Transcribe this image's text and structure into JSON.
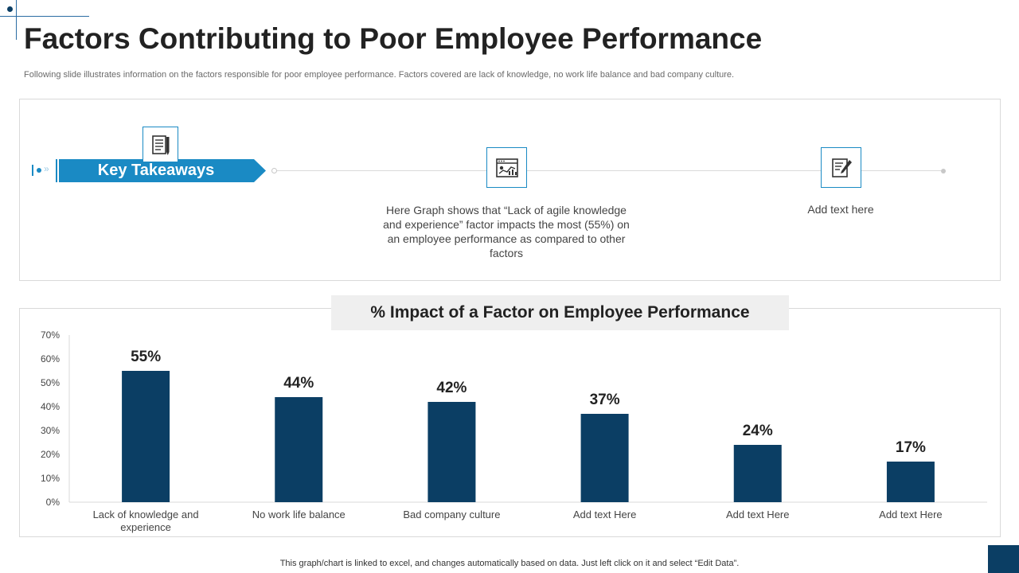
{
  "header": {
    "title": "Factors Contributing to Poor Employee Performance",
    "subtitle": "Following slide illustrates information on the factors responsible for poor employee performance. Factors covered are lack of knowledge, no work life balance and bad company culture."
  },
  "takeaways": {
    "label": "Key Takeaways",
    "point1": "Here Graph shows that “Lack of agile knowledge and experience” factor impacts the most (55%) on an employee performance as compared to other factors",
    "point2": "Add text here"
  },
  "colors": {
    "accent": "#1a8ac4",
    "bar": "#0b3e64",
    "grid": "#d9d9d9"
  },
  "chart_data": {
    "type": "bar",
    "title": "% Impact of a Factor on Employee Performance",
    "categories": [
      "Lack of  knowledge and experience",
      "No work life balance",
      "Bad company culture",
      "Add text Here",
      "Add text Here",
      "Add text Here"
    ],
    "values": [
      55,
      44,
      42,
      37,
      24,
      17
    ],
    "data_labels": [
      "55%",
      "44%",
      "42%",
      "37%",
      "24%",
      "17%"
    ],
    "yticks": [
      "0%",
      "10%",
      "20%",
      "30%",
      "40%",
      "50%",
      "60%",
      "70%"
    ],
    "ylim": [
      0,
      70
    ],
    "grid": false,
    "legend": "none"
  },
  "footer": {
    "note": "This graph/chart is linked to excel,  and changes automatically based on data. Just left click on it and select “Edit Data”."
  }
}
